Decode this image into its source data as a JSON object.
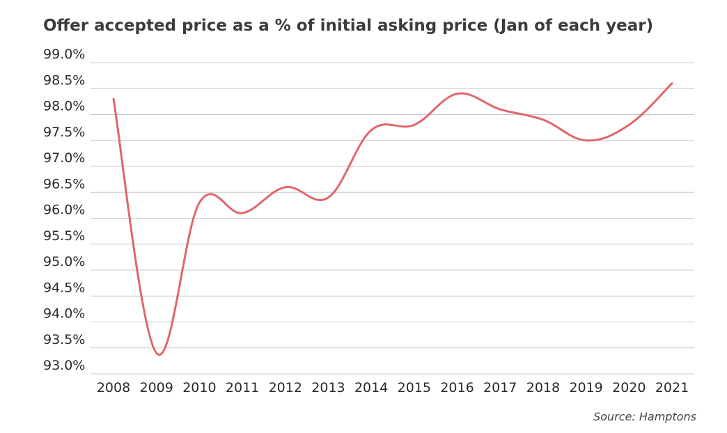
{
  "chart_data": {
    "type": "line",
    "title": "Offer accepted price as a % of initial asking price (Jan of each year)",
    "source": "Source: Hamptons",
    "categories": [
      "2008",
      "2009",
      "2010",
      "2011",
      "2012",
      "2013",
      "2014",
      "2015",
      "2016",
      "2017",
      "2018",
      "2019",
      "2020",
      "2021"
    ],
    "values": [
      98.3,
      93.4,
      96.3,
      96.1,
      96.6,
      96.4,
      97.7,
      97.8,
      98.4,
      98.1,
      97.9,
      97.5,
      97.8,
      98.6
    ],
    "color": "#e0666a",
    "ylim": [
      93,
      99
    ],
    "yticks": [
      {
        "value": 93,
        "label": "93.0%"
      },
      {
        "value": 93.5,
        "label": "93.5%"
      },
      {
        "value": 94,
        "label": "94.0%"
      },
      {
        "value": 94.5,
        "label": "94.5%"
      },
      {
        "value": 95,
        "label": "95.0%"
      },
      {
        "value": 95.5,
        "label": "95.5%"
      },
      {
        "value": 96,
        "label": "96.0%"
      },
      {
        "value": 96.5,
        "label": "96.5%"
      },
      {
        "value": 97,
        "label": "97.0%"
      },
      {
        "value": 97.5,
        "label": "97.5%"
      },
      {
        "value": 98,
        "label": "98.0%"
      },
      {
        "value": 98.5,
        "label": "98.5%"
      },
      {
        "value": 99,
        "label": "99.0%"
      }
    ],
    "grid": true
  }
}
